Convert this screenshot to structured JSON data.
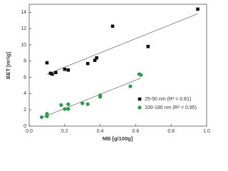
{
  "chart_data": {
    "type": "scatter",
    "x_label": "MB [g/100g]",
    "y_label": "BET [m²/g]",
    "xlim": [
      0,
      1
    ],
    "xticks": [
      {
        "value": 0,
        "label": "0.0"
      },
      0.2,
      0.4,
      0.6,
      0.8,
      {
        "value": 1,
        "label": "1.0"
      }
    ],
    "ylim": [
      0,
      15
    ],
    "yticks": [
      0,
      2,
      4,
      6,
      8,
      10,
      12,
      14
    ],
    "trendline": true,
    "legend": "lower-right",
    "series": [
      {
        "name": "25-50 nm (R² = 0.81)",
        "color": "#111111",
        "marker": "square",
        "x": [
          0.1,
          0.12,
          0.13,
          0.15,
          0.2,
          0.22,
          0.33,
          0.37,
          0.38,
          0.47,
          0.67,
          0.95
        ],
        "values": [
          7.8,
          6.5,
          6.4,
          6.6,
          7.0,
          6.9,
          7.7,
          8.1,
          8.4,
          12.3,
          9.8,
          14.4
        ]
      },
      {
        "name": "100-180 nm (R² = 0.95)",
        "color": "#2e9a4c",
        "marker": "circle",
        "x": [
          0.07,
          0.1,
          0.1,
          0.18,
          0.2,
          0.22,
          0.22,
          0.3,
          0.33,
          0.4,
          0.4,
          0.57,
          0.62,
          0.63
        ],
        "values": [
          1.1,
          1.5,
          1.2,
          2.6,
          2.1,
          2.7,
          2.1,
          2.8,
          2.7,
          3.6,
          3.8,
          4.9,
          6.4,
          6.3
        ]
      }
    ]
  }
}
